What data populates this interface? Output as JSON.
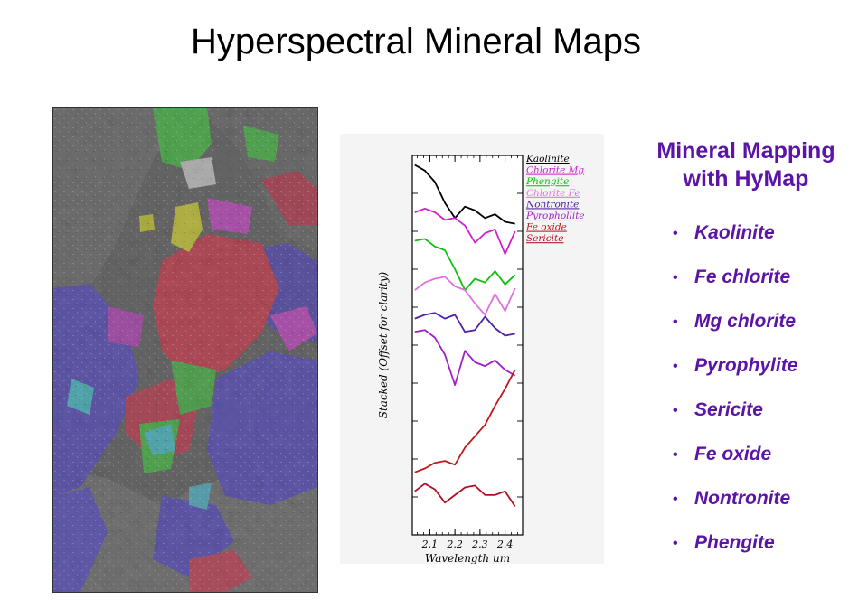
{
  "slide": {
    "title": "Hyperspectral Mineral Maps"
  },
  "side_panel": {
    "heading_line1": "Mineral Mapping",
    "heading_line2": "with HyMap",
    "minerals": [
      "Kaolinite",
      "Fe chlorite",
      "Mg chlorite",
      "Pyrophylite",
      "Sericite",
      "Fe oxide",
      "Nontronite",
      "Phengite"
    ],
    "text_color": "#5b14a6"
  },
  "map_image": {
    "colors": {
      "background_terrain": "#3a3a3a",
      "blue_class": "#3a2ad8",
      "red_class": "#e8102a",
      "green_class": "#1fd21f",
      "magenta_class": "#e020e0",
      "cyan_class": "#22d8e8",
      "yellow_class": "#f0f000",
      "white_class": "#e8e8e8"
    }
  },
  "chart_data": {
    "type": "line",
    "title": "",
    "xlabel": "Wavelength um",
    "ylabel": "Stacked (Offset for clarity)",
    "x_ticks": [
      "2.1",
      "2.2",
      "2.3",
      "2.4"
    ],
    "xlim": [
      2.03,
      2.47
    ],
    "ylim": [
      0,
      10
    ],
    "y_ticks_labeled": false,
    "legend_position": "top-right",
    "x": [
      2.04,
      2.08,
      2.12,
      2.16,
      2.2,
      2.24,
      2.28,
      2.32,
      2.36,
      2.4,
      2.44
    ],
    "series": [
      {
        "name": "Kaolinite",
        "color": "#000000",
        "values": [
          9.75,
          9.6,
          9.3,
          8.75,
          8.35,
          8.65,
          8.55,
          8.35,
          8.45,
          8.25,
          8.2
        ]
      },
      {
        "name": "Chlorite Mg",
        "color": "#d020d0",
        "values": [
          8.5,
          8.6,
          8.5,
          8.3,
          8.35,
          8.15,
          7.7,
          7.95,
          8.05,
          7.4,
          8.0
        ]
      },
      {
        "name": "Phengite",
        "color": "#10c010",
        "values": [
          7.75,
          7.8,
          7.6,
          7.5,
          7.0,
          6.45,
          6.75,
          6.65,
          6.95,
          6.6,
          6.85
        ]
      },
      {
        "name": "Chlorite Fe",
        "color": "#e070e0",
        "values": [
          6.45,
          6.65,
          6.75,
          6.8,
          6.55,
          6.45,
          6.1,
          5.8,
          6.35,
          5.9,
          6.5
        ]
      },
      {
        "name": "Nontronite",
        "color": "#5020a8",
        "values": [
          5.7,
          5.8,
          5.85,
          5.7,
          5.8,
          5.35,
          5.4,
          5.75,
          5.45,
          5.25,
          5.3
        ]
      },
      {
        "name": "Pyrophollite",
        "color": "#a020c8",
        "values": [
          5.35,
          5.4,
          5.2,
          4.75,
          3.95,
          4.85,
          4.55,
          4.45,
          4.6,
          4.35,
          4.2
        ]
      },
      {
        "name": "Fe oxide",
        "color": "#c01818",
        "values": [
          1.65,
          1.75,
          1.9,
          1.95,
          1.85,
          2.3,
          2.6,
          2.9,
          3.4,
          3.85,
          4.35
        ]
      },
      {
        "name": "Sericite",
        "color": "#b01020",
        "values": [
          1.15,
          1.35,
          1.2,
          0.85,
          1.05,
          1.25,
          1.3,
          1.05,
          1.05,
          1.15,
          0.75
        ]
      }
    ]
  }
}
